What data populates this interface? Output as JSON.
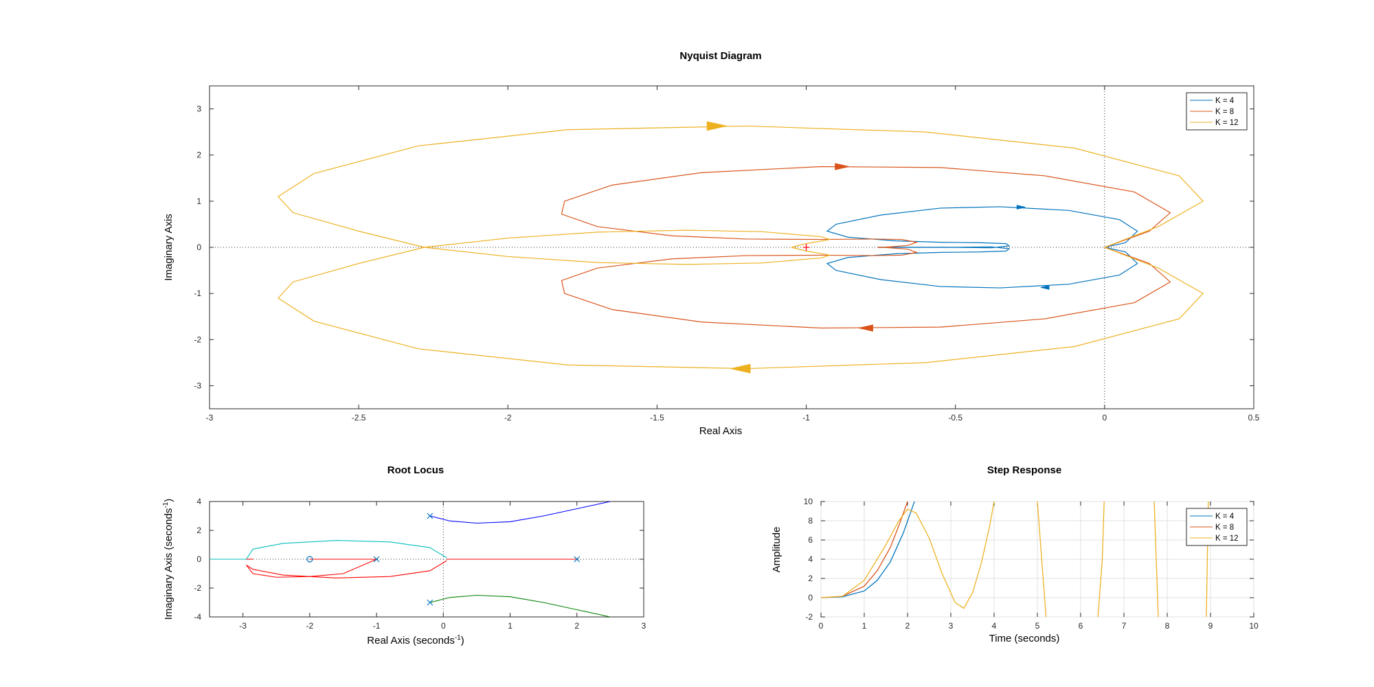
{
  "chart_data": [
    {
      "id": "nyquist",
      "type": "line",
      "title": "Nyquist Diagram",
      "xlabel": "Real Axis",
      "ylabel": "Imaginary Axis",
      "xlim": [
        -3,
        0.5
      ],
      "ylim": [
        -3.5,
        3.5
      ],
      "xticks": [
        -3,
        -2.5,
        -2,
        -1.5,
        -1,
        -0.5,
        0,
        0.5
      ],
      "yticks": [
        -3,
        -2,
        -1,
        0,
        1,
        2,
        3
      ],
      "grid": false,
      "legend": {
        "position": "top-right",
        "entries": [
          "K = 4",
          "K = 8",
          "K = 12"
        ]
      },
      "critical_point": {
        "x": -1,
        "y": 0
      },
      "series": [
        {
          "name": "K = 4",
          "color": "#0072BD",
          "x": [
            0,
            0.07,
            0.11,
            0.05,
            -0.12,
            -0.35,
            -0.55,
            -0.75,
            -0.9,
            -0.93,
            -0.86,
            -0.7,
            -0.55,
            -0.42,
            -0.33,
            -0.32,
            -0.38,
            -0.52,
            -0.65,
            -0.76
          ],
          "y": [
            0,
            0.1,
            0.35,
            0.6,
            0.8,
            0.88,
            0.85,
            0.7,
            0.5,
            0.35,
            0.22,
            0.14,
            0.11,
            0.1,
            0.08,
            0.03,
            -0.01,
            0,
            0,
            0
          ],
          "arrow": {
            "x": -0.28,
            "y": 0.87
          }
        },
        {
          "name": "K = 8",
          "color": "#D95319",
          "x": [
            0,
            0.15,
            0.22,
            0.1,
            -0.2,
            -0.55,
            -0.95,
            -1.35,
            -1.65,
            -1.81,
            -1.82,
            -1.7,
            -1.45,
            -1.2,
            -0.95,
            -0.78,
            -0.68,
            -0.63,
            -0.66,
            -0.74,
            -0.76
          ],
          "y": [
            0,
            0.35,
            0.75,
            1.2,
            1.55,
            1.73,
            1.75,
            1.62,
            1.35,
            1.0,
            0.72,
            0.45,
            0.25,
            0.18,
            0.17,
            0.18,
            0.17,
            0.11,
            0.04,
            0,
            0
          ],
          "arrow": {
            "x": -0.88,
            "y": 1.75
          }
        },
        {
          "name": "K = 12",
          "color": "#EDB120",
          "x": [
            0,
            0.18,
            0.33,
            0.25,
            -0.1,
            -0.6,
            -1.2,
            -1.8,
            -2.3,
            -2.65,
            -2.77,
            -2.72,
            -2.5,
            -2.28,
            -2.0,
            -1.7,
            -1.4,
            -1.15,
            -0.95,
            -0.92,
            -1.0,
            -1.05
          ],
          "y": [
            0,
            0.45,
            1.0,
            1.55,
            2.15,
            2.5,
            2.63,
            2.55,
            2.2,
            1.6,
            1.1,
            0.75,
            0.35,
            0,
            -0.2,
            -0.33,
            -0.37,
            -0.34,
            -0.23,
            -0.17,
            -0.08,
            0
          ],
          "arrow": {
            "x": -1.3,
            "y": 2.63
          }
        }
      ]
    },
    {
      "id": "rootlocus",
      "type": "line",
      "title": "Root Locus",
      "xlabel_main": "Real Axis (seconds",
      "xlabel_sup": "-1",
      "xlabel_end": ")",
      "ylabel_main": "Imaginary Axis (seconds",
      "ylabel_sup": "-1",
      "ylabel_end": ")",
      "xlim": [
        -3.5,
        3
      ],
      "ylim": [
        -4,
        4
      ],
      "xticks": [
        -3,
        -2,
        -1,
        0,
        1,
        2,
        3
      ],
      "yticks": [
        -4,
        -2,
        0,
        2,
        4
      ],
      "grid": false,
      "poles": [
        {
          "x": -0.2,
          "y": 3
        },
        {
          "x": -0.2,
          "y": -3
        },
        {
          "x": -1,
          "y": 0
        },
        {
          "x": 2,
          "y": 0
        }
      ],
      "zeros": [
        {
          "x": -2,
          "y": 0
        }
      ],
      "branches": [
        {
          "color": "#0000FF",
          "x": [
            -0.2,
            0.1,
            0.5,
            1.0,
            1.5,
            2.0,
            2.5
          ],
          "y": [
            3,
            2.65,
            2.5,
            2.6,
            3.0,
            3.5,
            4.0
          ]
        },
        {
          "color": "#008000",
          "x": [
            -0.2,
            0.1,
            0.5,
            1.0,
            1.5,
            2.0,
            2.5
          ],
          "y": [
            -3,
            -2.65,
            -2.5,
            -2.6,
            -3.0,
            -3.5,
            -4.0
          ]
        },
        {
          "color": "#FF0000",
          "x": [
            -1,
            -1.5,
            -2.0,
            -2.5,
            -2.85,
            -2.95,
            -2.85,
            -2.4,
            -1.6,
            -0.8,
            -0.2,
            0.05
          ],
          "y": [
            0,
            -1.0,
            -1.2,
            -1.25,
            -1.0,
            -0.4,
            -0.7,
            -1.1,
            -1.3,
            -1.2,
            -0.8,
            -0.1
          ]
        },
        {
          "color": "#00BFBF",
          "x": [
            0.05,
            -0.2,
            -0.8,
            -1.6,
            -2.4,
            -2.85,
            -2.95
          ],
          "y": [
            0.1,
            0.8,
            1.2,
            1.3,
            1.1,
            0.7,
            0
          ]
        },
        {
          "color": "#00BFBF",
          "x": [
            -2.95,
            -3.5
          ],
          "y": [
            0,
            0
          ]
        },
        {
          "color": "#FF0000",
          "x": [
            -1,
            -2
          ],
          "y": [
            0,
            0
          ]
        },
        {
          "color": "#FF0000",
          "x": [
            0.05,
            2
          ],
          "y": [
            0,
            0
          ]
        },
        {
          "color": "#FF0000",
          "x": [
            -2.95,
            -2.85
          ],
          "y": [
            0,
            0
          ]
        }
      ]
    },
    {
      "id": "step",
      "type": "line",
      "title": "Step Response",
      "xlabel": "Time (seconds)",
      "ylabel": "Amplitude",
      "xlim": [
        0,
        10
      ],
      "ylim": [
        -2,
        10
      ],
      "xticks": [
        0,
        1,
        2,
        3,
        4,
        5,
        6,
        7,
        8,
        9,
        10
      ],
      "yticks": [
        -2,
        0,
        2,
        4,
        6,
        8,
        10
      ],
      "grid": true,
      "legend": {
        "position": "top-right",
        "entries": [
          "K = 4",
          "K = 8",
          "K = 12"
        ]
      },
      "series": [
        {
          "name": "K = 4",
          "color": "#0072BD",
          "x": [
            0,
            0.5,
            1.0,
            1.3,
            1.6,
            1.9,
            2.2
          ],
          "y": [
            0,
            0.1,
            0.7,
            1.8,
            3.7,
            6.7,
            10.5
          ]
        },
        {
          "name": "K = 8",
          "color": "#D95319",
          "x": [
            0,
            0.5,
            1.0,
            1.3,
            1.6,
            1.8,
            2.0
          ],
          "y": [
            0,
            0.15,
            1.2,
            2.8,
            5.2,
            7.5,
            10.0
          ]
        },
        {
          "name": "K = 12",
          "color": "#EDB120",
          "x": [
            0,
            0.5,
            1.0,
            1.5,
            1.8,
            2.0,
            2.2,
            2.5,
            2.8,
            3.1,
            3.3,
            3.5,
            3.7,
            3.9,
            4.0,
            4.05,
            4.95,
            5.0,
            5.1,
            5.2,
            5.25,
            6.35,
            6.4,
            6.5,
            6.55,
            7.65,
            7.7,
            7.8,
            8.9,
            8.95,
            9.0
          ],
          "y": [
            0,
            0.15,
            1.8,
            5.5,
            8.0,
            9.2,
            8.8,
            6.2,
            2.5,
            -0.5,
            -1.1,
            0.5,
            3.5,
            7.5,
            10.0,
            11.0,
            11.0,
            10.0,
            4.0,
            -2.0,
            -3.0,
            -3.0,
            -2.0,
            4.0,
            11.0,
            11.0,
            10.0,
            -3.0,
            -3.0,
            10.0,
            11.0
          ]
        }
      ]
    }
  ]
}
